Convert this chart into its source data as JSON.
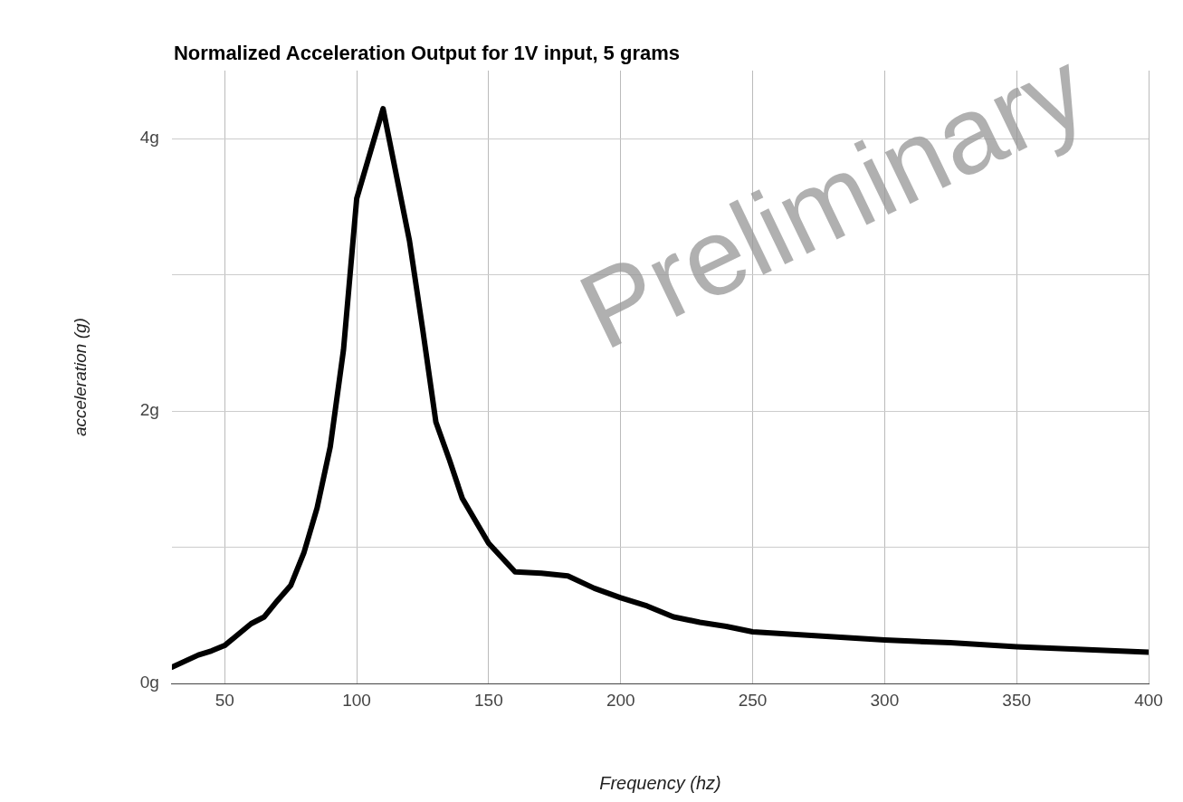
{
  "chart_data": {
    "type": "line",
    "title": "Normalized Acceleration Output for 1V input, 5 grams",
    "xlabel": "Frequency (hz)",
    "ylabel": "acceleration (g)",
    "annotations": [
      "Preliminary"
    ],
    "x": [
      30,
      40,
      45,
      50,
      60,
      65,
      70,
      75,
      80,
      85,
      90,
      95,
      100,
      110,
      120,
      125,
      130,
      135,
      140,
      150,
      160,
      170,
      180,
      190,
      200,
      210,
      220,
      230,
      240,
      250,
      275,
      300,
      325,
      350,
      375,
      400
    ],
    "series": [
      {
        "color": "#000000",
        "values": [
          0.12,
          0.21,
          0.24,
          0.28,
          0.44,
          0.49,
          0.61,
          0.72,
          0.96,
          1.29,
          1.74,
          2.45,
          3.56,
          4.22,
          3.25,
          2.6,
          1.92,
          1.65,
          1.36,
          1.03,
          0.82,
          0.81,
          0.79,
          0.7,
          0.63,
          0.57,
          0.49,
          0.45,
          0.42,
          0.38,
          0.35,
          0.32,
          0.3,
          0.27,
          0.25,
          0.23
        ]
      }
    ],
    "xlim": [
      30,
      400
    ],
    "xticks": [
      50,
      100,
      150,
      200,
      250,
      300,
      350,
      400
    ],
    "ylim": [
      0,
      4.5
    ],
    "yticks": [
      {
        "value": 0,
        "label": "0g"
      },
      {
        "value": 1,
        "label": null
      },
      {
        "value": 2,
        "label": "2g"
      },
      {
        "value": 3,
        "label": null
      },
      {
        "value": 4,
        "label": "4g"
      }
    ],
    "grid": true,
    "legend": false,
    "marker": "none",
    "line_style": "solid"
  }
}
